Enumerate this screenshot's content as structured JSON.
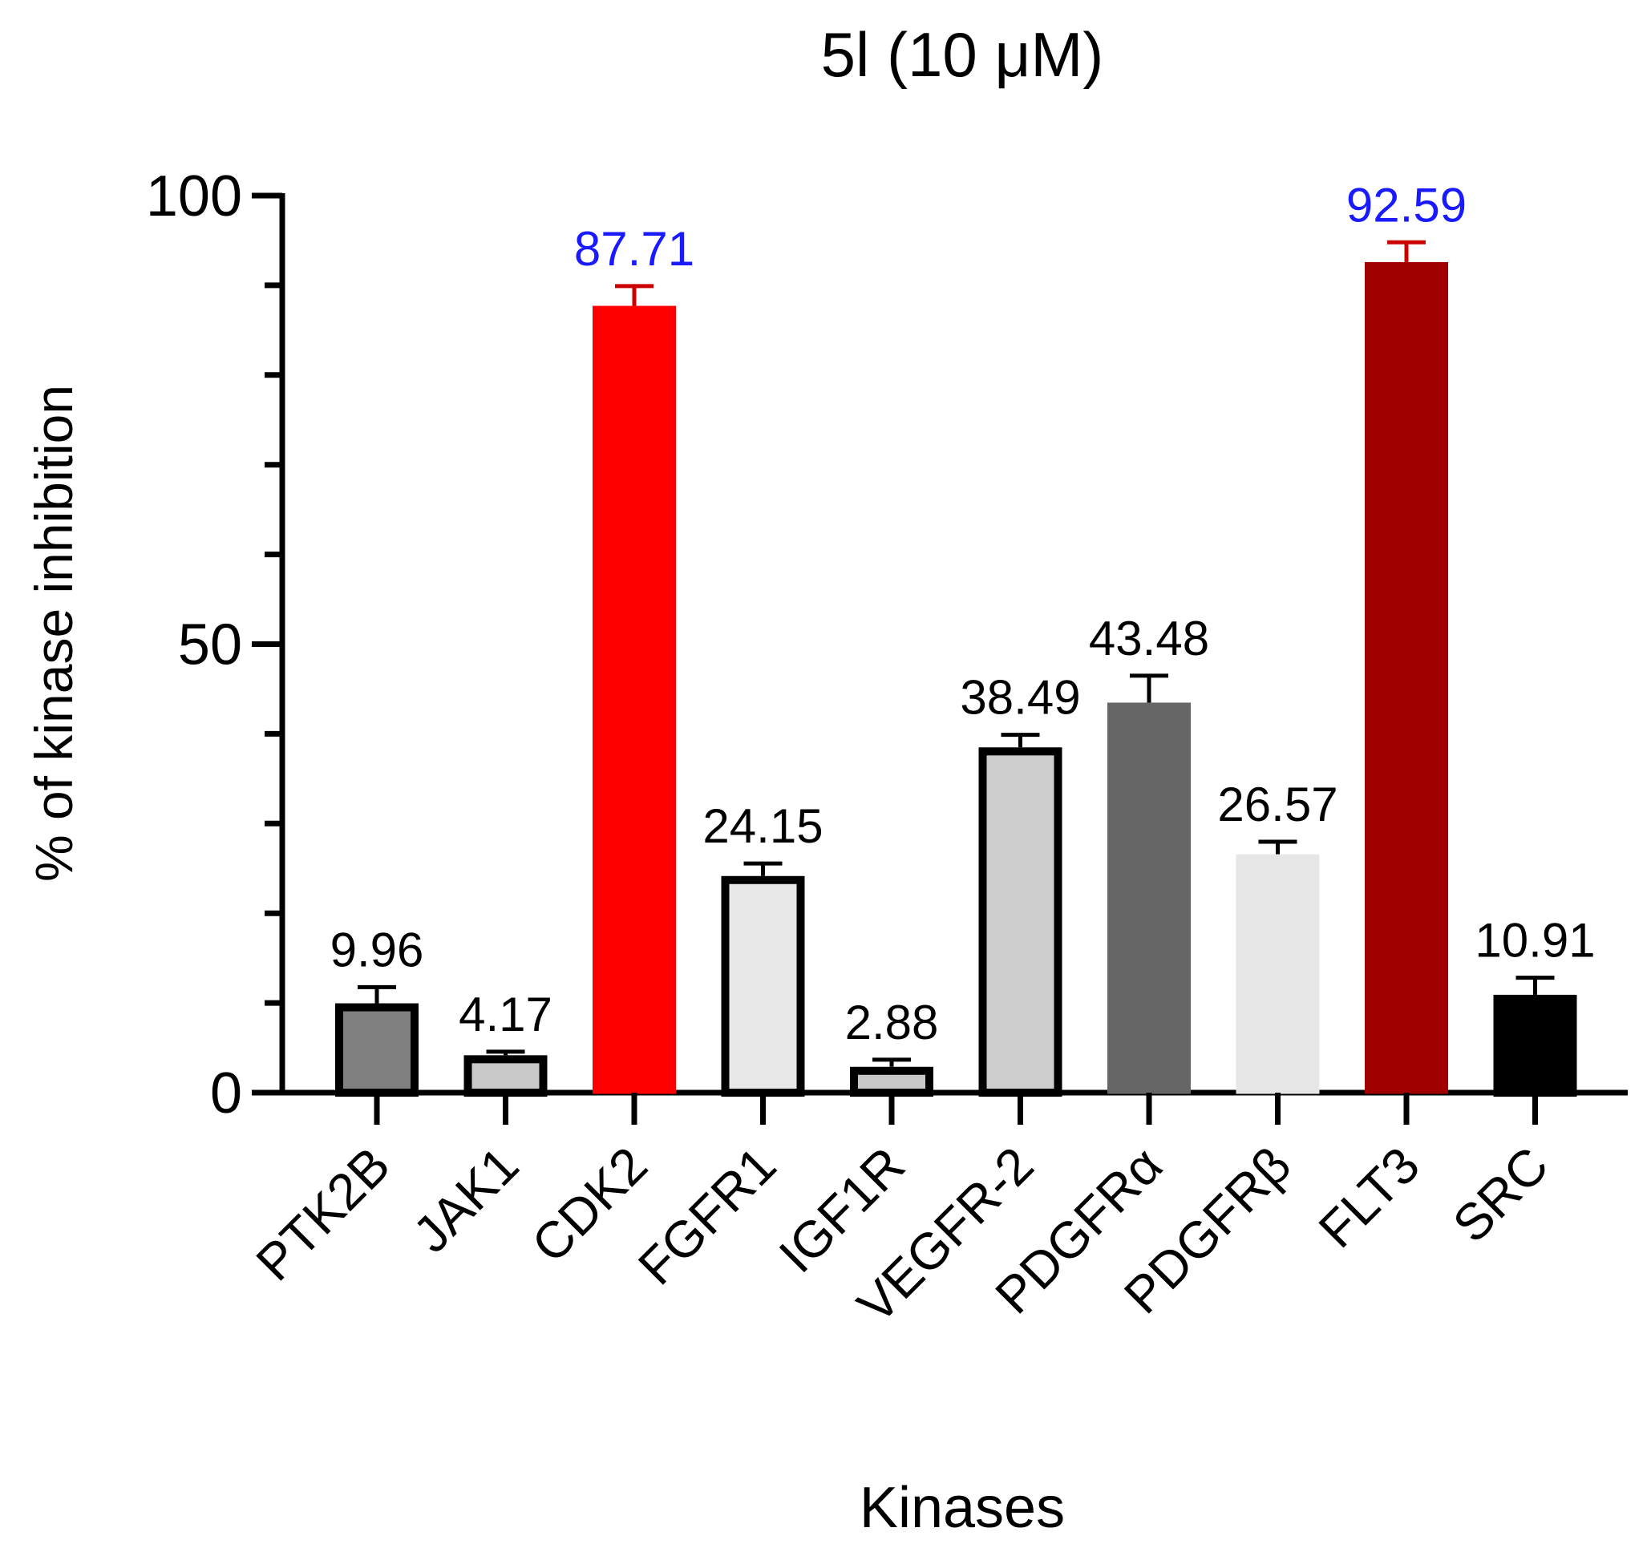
{
  "chart_data": {
    "type": "bar",
    "title": "5l (10 μM)",
    "xlabel": "Kinases",
    "ylabel": "% of kinase inhibition",
    "ylim": [
      0,
      100
    ],
    "yticks": [
      0,
      50,
      100
    ],
    "grid": false,
    "categories": [
      "PTK2B",
      "JAK1",
      "CDK2",
      "FGFR1",
      "IGF1R",
      "VEGFR-2",
      "PDGFRα",
      "PDGFRβ",
      "FLT3",
      "SRC"
    ],
    "values": [
      9.96,
      4.17,
      87.71,
      24.15,
      2.88,
      38.49,
      43.48,
      26.57,
      92.59,
      10.91
    ],
    "value_labels": [
      "9.96",
      "4.17",
      "87.71",
      "24.15",
      "2.88",
      "38.49",
      "43.48",
      "26.57",
      "92.59",
      "10.91"
    ],
    "errors": [
      1.8,
      0.4,
      2.2,
      1.4,
      0.8,
      1.4,
      3.0,
      1.4,
      2.2,
      1.9
    ],
    "bar_fill_colors": [
      "#808080",
      "#c8c8c8",
      "#ff0000",
      "#e8e8e8",
      "#c8c8c8",
      "#cdcdcd",
      "#666666",
      "#e6e6e6",
      "#a00000",
      "#000000"
    ],
    "bar_outline_colors": [
      "#000000",
      "#000000",
      "#ff0000",
      "#000000",
      "#000000",
      "#000000",
      "#666666",
      "#e6e6e6",
      "#a00000",
      "#000000"
    ],
    "error_bar_colors": [
      "#000000",
      "#000000",
      "#cc0000",
      "#000000",
      "#000000",
      "#000000",
      "#000000",
      "#000000",
      "#cc0000",
      "#000000"
    ],
    "label_colors": [
      "#000000",
      "#000000",
      "#1a1aff",
      "#000000",
      "#000000",
      "#000000",
      "#000000",
      "#000000",
      "#1a1aff",
      "#000000"
    ]
  }
}
